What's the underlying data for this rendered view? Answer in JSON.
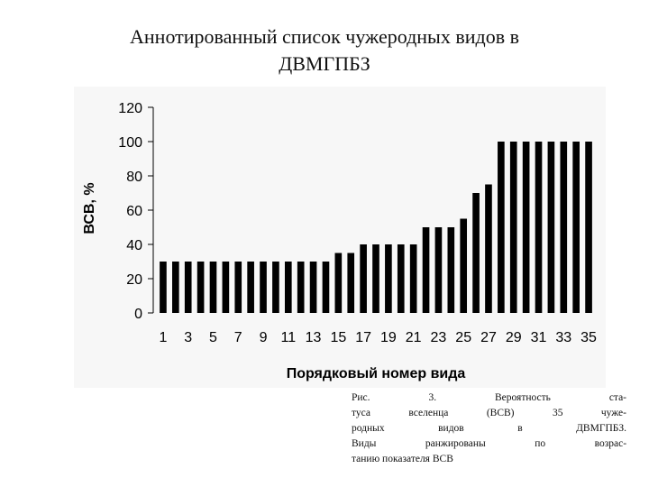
{
  "title": {
    "line1": "Аннотированный список чужеродных видов в",
    "line2": "ДВМГПБЗ"
  },
  "chart_data": {
    "type": "bar",
    "title": "",
    "xlabel": "Порядковый номер вида",
    "ylabel": "ВСВ, %",
    "ylim": [
      0,
      120
    ],
    "yticks": [
      0,
      20,
      40,
      60,
      80,
      100,
      120
    ],
    "xtick_labels": [
      "1",
      "3",
      "5",
      "7",
      "9",
      "11",
      "13",
      "15",
      "17",
      "19",
      "21",
      "23",
      "25",
      "27",
      "29",
      "31",
      "33",
      "35"
    ],
    "categories": [
      "1",
      "2",
      "3",
      "4",
      "5",
      "6",
      "7",
      "8",
      "9",
      "10",
      "11",
      "12",
      "13",
      "14",
      "15",
      "16",
      "17",
      "18",
      "19",
      "20",
      "21",
      "22",
      "23",
      "24",
      "25",
      "26",
      "27",
      "28",
      "29",
      "30",
      "31",
      "32",
      "33",
      "34",
      "35"
    ],
    "values": [
      30,
      30,
      30,
      30,
      30,
      30,
      30,
      30,
      30,
      30,
      30,
      30,
      30,
      30,
      35,
      35,
      40,
      40,
      40,
      40,
      40,
      50,
      50,
      50,
      55,
      70,
      75,
      100,
      100,
      100,
      100,
      100,
      100,
      100,
      100
    ],
    "bar_color": "#000000",
    "grid": false,
    "legend": "none"
  },
  "caption": {
    "lines": [
      [
        "Рис.",
        "3.",
        "Вероятность",
        "ста-"
      ],
      [
        "туса",
        "вселенца",
        "(ВСВ)",
        "35",
        "чуже-"
      ],
      [
        "родных",
        "видов",
        "в",
        "ДВМГПБЗ."
      ],
      [
        "Виды",
        "ранжированы",
        "по",
        "возрас-"
      ],
      [
        "танию показателя ВСВ"
      ]
    ]
  }
}
